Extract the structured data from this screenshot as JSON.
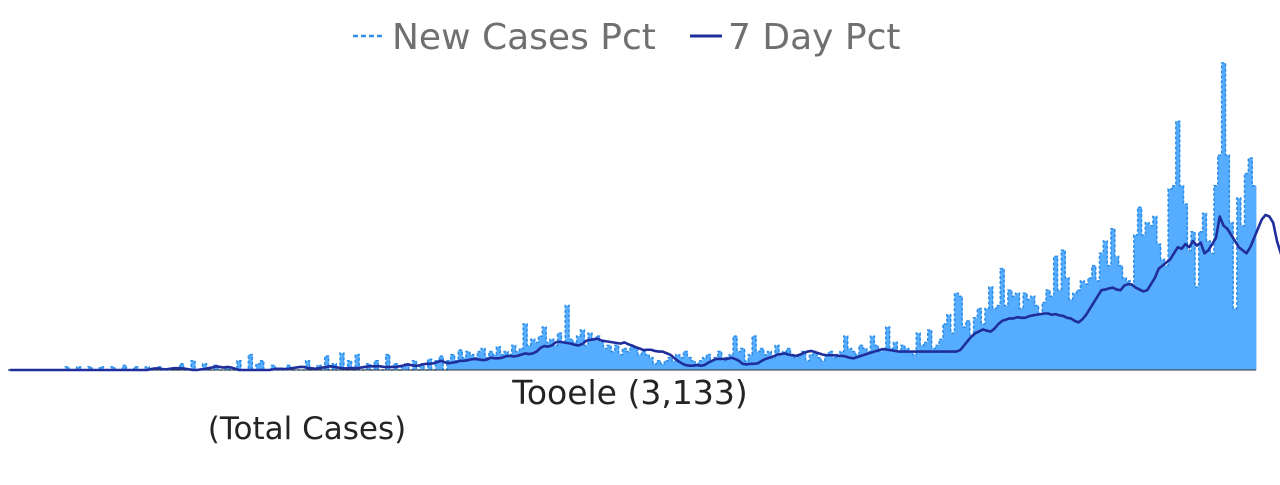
{
  "chart_data": {
    "type": "area",
    "title": "Tooele (3,133)",
    "subtitle": "(Total Cases)",
    "grid": false,
    "legend_position": "top-center",
    "ylim": [
      0,
      1
    ],
    "colors": {
      "new_cases": "#56ADFF",
      "new_cases_edge": "#2F8FE8",
      "seven_day": "#1F2E9B",
      "axis": "#333333"
    },
    "series": [
      {
        "name": "New Cases Pct",
        "style": "dashed-area",
        "values": [
          0,
          0,
          0,
          0,
          0,
          0,
          0,
          0,
          0,
          0,
          0,
          0,
          0,
          0,
          0,
          0.01,
          0,
          0,
          0.01,
          0,
          0,
          0.01,
          0,
          0,
          0.01,
          0,
          0,
          0.01,
          0,
          0,
          0.015,
          0,
          0,
          0.01,
          0,
          0,
          0.01,
          0,
          0,
          0.01,
          0,
          0,
          0.005,
          0,
          0,
          0.02,
          0,
          0,
          0.03,
          0,
          0,
          0.02,
          0,
          0,
          0.015,
          0,
          0,
          0.01,
          0,
          0,
          0.03,
          0,
          0,
          0.05,
          0,
          0.02,
          0.03,
          0,
          0,
          0.015,
          0,
          0,
          0,
          0.015,
          0,
          0,
          0,
          0,
          0.03,
          0,
          0,
          0.015,
          0,
          0.045,
          0,
          0.02,
          0,
          0.055,
          0,
          0.03,
          0,
          0.05,
          0,
          0,
          0.02,
          0,
          0.03,
          0,
          0,
          0.05,
          0,
          0.02,
          0,
          0.01,
          0.02,
          0,
          0.03,
          0,
          0.02,
          0,
          0.035,
          0,
          0.03,
          0.045,
          0,
          0.03,
          0.05,
          0.03,
          0.065,
          0.04,
          0.06,
          0.05,
          0.04,
          0.06,
          0.07,
          0.04,
          0.06,
          0.05,
          0.075,
          0.05,
          0.06,
          0.05,
          0.08,
          0.06,
          0.07,
          0.15,
          0.08,
          0.1,
          0.09,
          0.11,
          0.14,
          0.09,
          0.1,
          0.08,
          0.12,
          0.09,
          0.21,
          0.1,
          0.09,
          0.11,
          0.13,
          0.08,
          0.12,
          0.1,
          0.11,
          0.09,
          0.07,
          0.08,
          0.06,
          0.08,
          0.05,
          0.07,
          0.06,
          0.08,
          0.07,
          0.05,
          0.06,
          0.05,
          0.04,
          0.02,
          0.03,
          0.02,
          0.03,
          0.04,
          0.03,
          0.05,
          0.04,
          0.06,
          0.04,
          0.03,
          0.02,
          0.03,
          0.04,
          0.05,
          0.03,
          0.04,
          0.06,
          0.03,
          0.04,
          0.05,
          0.11,
          0.06,
          0.07,
          0.03,
          0.05,
          0.11,
          0.06,
          0.07,
          0.05,
          0.06,
          0.04,
          0.08,
          0.05,
          0.06,
          0.07,
          0.05,
          0.04,
          0.05,
          0.06,
          0.03,
          0.05,
          0.06,
          0.04,
          0.03,
          0.05,
          0.06,
          0.04,
          0.05,
          0.06,
          0.11,
          0.07,
          0.06,
          0.05,
          0.08,
          0.07,
          0.06,
          0.11,
          0.08,
          0.06,
          0.07,
          0.14,
          0.07,
          0.09,
          0.06,
          0.08,
          0.07,
          0.06,
          0.05,
          0.12,
          0.08,
          0.09,
          0.13,
          0.07,
          0.08,
          0.1,
          0.15,
          0.18,
          0.12,
          0.25,
          0.24,
          0.14,
          0.16,
          0.11,
          0.17,
          0.2,
          0.15,
          0.2,
          0.27,
          0.2,
          0.21,
          0.33,
          0.21,
          0.26,
          0.24,
          0.25,
          0.2,
          0.25,
          0.23,
          0.24,
          0.21,
          0.18,
          0.22,
          0.26,
          0.24,
          0.37,
          0.26,
          0.39,
          0.3,
          0.23,
          0.25,
          0.26,
          0.29,
          0.28,
          0.3,
          0.34,
          0.29,
          0.38,
          0.42,
          0.34,
          0.46,
          0.37,
          0.34,
          0.3,
          0.29,
          0.28,
          0.44,
          0.53,
          0.44,
          0.48,
          0.47,
          0.5,
          0.41,
          0.36,
          0.34,
          0.59,
          0.6,
          0.81,
          0.6,
          0.54,
          0.39,
          0.45,
          0.27,
          0.45,
          0.51,
          0.42,
          0.38,
          0.6,
          0.7,
          1.0,
          0.7,
          0.48,
          0.2,
          0.56,
          0.47,
          0.64,
          0.69,
          0.6
        ]
      },
      {
        "name": "7 Day Pct",
        "style": "line",
        "values": [
          0,
          0,
          0,
          0,
          0,
          0,
          0,
          0,
          0,
          0,
          0,
          0,
          0,
          0,
          0,
          0,
          0,
          0,
          0,
          0,
          0,
          0,
          0,
          0,
          0,
          0,
          0,
          0,
          0,
          0,
          0,
          0,
          0,
          0,
          0,
          0,
          0,
          0.003,
          0.005,
          0.005,
          0.003,
          0.002,
          0.004,
          0.006,
          0.006,
          0.005,
          0.004,
          0.002,
          0,
          0,
          0.002,
          0.003,
          0.006,
          0.008,
          0.012,
          0.01,
          0.008,
          0.01,
          0.008,
          0.004,
          0,
          0,
          0,
          0,
          0,
          0,
          0,
          0,
          0,
          0.002,
          0.004,
          0.004,
          0.003,
          0.004,
          0.006,
          0.008,
          0.01,
          0.01,
          0.006,
          0.006,
          0.004,
          0.006,
          0.008,
          0.01,
          0.012,
          0.01,
          0.008,
          0.006,
          0.005,
          0.006,
          0.006,
          0.006,
          0.008,
          0.01,
          0.012,
          0.012,
          0.012,
          0.012,
          0.01,
          0.01,
          0.01,
          0.01,
          0.012,
          0.014,
          0.018,
          0.016,
          0.014,
          0.014,
          0.018,
          0.02,
          0.02,
          0.022,
          0.026,
          0.03,
          0.025,
          0.022,
          0.024,
          0.026,
          0.03,
          0.03,
          0.032,
          0.035,
          0.036,
          0.034,
          0.032,
          0.034,
          0.04,
          0.038,
          0.038,
          0.04,
          0.045,
          0.046,
          0.044,
          0.046,
          0.05,
          0.054,
          0.052,
          0.054,
          0.06,
          0.072,
          0.078,
          0.076,
          0.08,
          0.09,
          0.092,
          0.09,
          0.088,
          0.086,
          0.082,
          0.08,
          0.085,
          0.095,
          0.098,
          0.1,
          0.102,
          0.096,
          0.094,
          0.092,
          0.09,
          0.088,
          0.086,
          0.09,
          0.084,
          0.08,
          0.074,
          0.07,
          0.065,
          0.066,
          0.066,
          0.062,
          0.06,
          0.06,
          0.055,
          0.05,
          0.04,
          0.03,
          0.022,
          0.016,
          0.014,
          0.014,
          0.016,
          0.014,
          0.016,
          0.024,
          0.03,
          0.036,
          0.036,
          0.036,
          0.036,
          0.04,
          0.036,
          0.03,
          0.02,
          0.018,
          0.02,
          0.02,
          0.022,
          0.03,
          0.036,
          0.04,
          0.044,
          0.05,
          0.052,
          0.054,
          0.05,
          0.048,
          0.046,
          0.05,
          0.056,
          0.06,
          0.062,
          0.058,
          0.054,
          0.05,
          0.048,
          0.048,
          0.048,
          0.046,
          0.046,
          0.044,
          0.04,
          0.038,
          0.042,
          0.046,
          0.05,
          0.054,
          0.058,
          0.062,
          0.066,
          0.068,
          0.066,
          0.064,
          0.062,
          0.06,
          0.06,
          0.06,
          0.06,
          0.06,
          0.06,
          0.06,
          0.06,
          0.06,
          0.06,
          0.06,
          0.06,
          0.06,
          0.06,
          0.06,
          0.06,
          0.065,
          0.08,
          0.095,
          0.11,
          0.12,
          0.126,
          0.132,
          0.128,
          0.125,
          0.135,
          0.15,
          0.16,
          0.164,
          0.168,
          0.168,
          0.172,
          0.17,
          0.17,
          0.175,
          0.178,
          0.18,
          0.182,
          0.184,
          0.184,
          0.18,
          0.182,
          0.178,
          0.176,
          0.17,
          0.168,
          0.16,
          0.155,
          0.165,
          0.18,
          0.2,
          0.22,
          0.24,
          0.26,
          0.262,
          0.266,
          0.268,
          0.262,
          0.26,
          0.275,
          0.28,
          0.278,
          0.268,
          0.262,
          0.256,
          0.26,
          0.28,
          0.3,
          0.33,
          0.34,
          0.35,
          0.36,
          0.38,
          0.4,
          0.395,
          0.41,
          0.4,
          0.42,
          0.405,
          0.415,
          0.38,
          0.39,
          0.41,
          0.43,
          0.5,
          0.47,
          0.46,
          0.44,
          0.42,
          0.4,
          0.39,
          0.38,
          0.4,
          0.43,
          0.46,
          0.49,
          0.505,
          0.5,
          0.48,
          0.42,
          0.38,
          0.37,
          0.38,
          0.365,
          0.36,
          0.38,
          0.4,
          0.42,
          0.51
        ]
      }
    ]
  }
}
